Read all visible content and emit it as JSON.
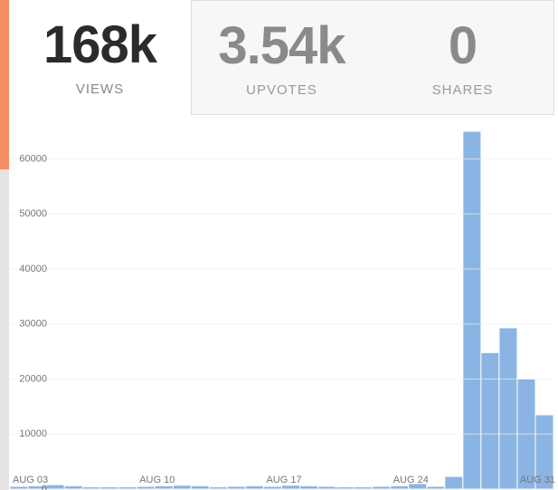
{
  "stats": [
    {
      "value": "168k",
      "label": "VIEWS"
    },
    {
      "value": "3.54k",
      "label": "UPVOTES"
    },
    {
      "value": "0",
      "label": "SHARES"
    }
  ],
  "chart_data": {
    "type": "bar",
    "categories": [
      "AUG 03",
      null,
      null,
      null,
      null,
      null,
      null,
      "AUG 10",
      null,
      null,
      null,
      null,
      null,
      null,
      "AUG 17",
      null,
      null,
      null,
      null,
      null,
      null,
      "AUG 24",
      null,
      null,
      null,
      null,
      null,
      null,
      "AUG 31",
      null
    ],
    "values": [
      500,
      600,
      800,
      600,
      400,
      400,
      400,
      500,
      600,
      700,
      600,
      400,
      500,
      600,
      500,
      700,
      600,
      500,
      400,
      400,
      500,
      600,
      1000,
      500,
      2300,
      65000,
      24800,
      29300,
      20000,
      13500
    ],
    "color": "#8ab4e3",
    "ylim": [
      0,
      65000
    ],
    "yticks": [
      0,
      10000,
      20000,
      30000,
      40000,
      50000,
      60000
    ],
    "grid": true
  }
}
